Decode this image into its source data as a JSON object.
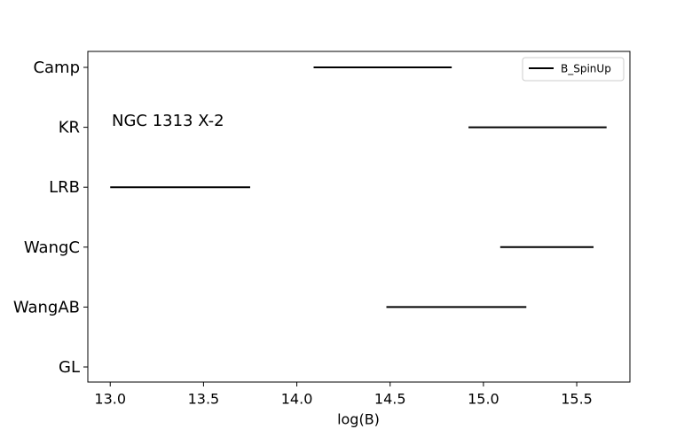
{
  "chart_data": {
    "type": "range",
    "xlabel": "log(B)",
    "annotation": "NGC 1313 X-2",
    "categories": [
      "Camp",
      "KR",
      "LRB",
      "WangC",
      "WangAB",
      "GL"
    ],
    "series": [
      {
        "name": "B_SpinUp",
        "color": "#000000",
        "low": [
          14.09,
          14.92,
          13.0,
          15.09,
          14.48,
          null
        ],
        "high": [
          14.83,
          15.66,
          13.75,
          15.59,
          15.23,
          null
        ]
      }
    ],
    "xlim": [
      12.88,
      15.785
    ],
    "xticks": [
      {
        "value": 13,
        "label": "13.0"
      },
      13.5,
      {
        "value": 14,
        "label": "14.0"
      },
      14.5,
      {
        "value": 15,
        "label": "15.0"
      },
      15.5
    ],
    "legend": "upper-right"
  }
}
